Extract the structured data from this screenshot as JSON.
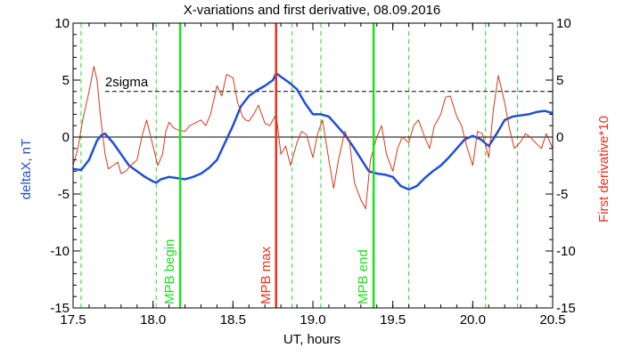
{
  "chart_data": {
    "type": "line",
    "title": "X-variations and first derivative, 08.09.2016",
    "xlabel": "UT, hours",
    "ylabel_left": "deltaX, nT",
    "ylabel_right": "First derivative*10",
    "xlim": [
      17.5,
      20.5
    ],
    "ylim": [
      -15,
      10
    ],
    "xticks": [
      "17.5",
      "18.0",
      "18.5",
      "19.0",
      "19.5",
      "20.0",
      "20.5"
    ],
    "xtick_values": [
      17.5,
      18.0,
      18.5,
      19.0,
      19.5,
      20.0,
      20.5
    ],
    "yticks_left": [
      "10",
      "5",
      "0",
      "-5",
      "-10",
      "-15"
    ],
    "yticks_right": [
      "10",
      "5",
      "0",
      "-5",
      "-10",
      "-15"
    ],
    "ytick_values": [
      10,
      5,
      0,
      -5,
      -10,
      -15
    ],
    "colors": {
      "deltaX": "#1f4fd6",
      "derivative": "#d43a1a",
      "mpb_bounds": "#1ee01e",
      "mpb_max": "#e8321e",
      "axes": "#000000"
    },
    "sigma": {
      "label": "2sigma",
      "value": 4
    },
    "vertical_markers": [
      {
        "label": "MPB begin",
        "x": 18.17,
        "color": "#1ee01e"
      },
      {
        "label": "MPB max",
        "x": 18.77,
        "color": "#e8321e"
      },
      {
        "label": "MPB end",
        "x": 19.38,
        "color": "#1ee01e"
      }
    ],
    "dashed_verticals": [
      17.55,
      18.02,
      18.87,
      19.05,
      19.6,
      20.08,
      20.28
    ],
    "series": [
      {
        "name": "deltaX",
        "axis": "left",
        "x": [
          17.5,
          17.55,
          17.6,
          17.65,
          17.68,
          17.7,
          17.75,
          17.8,
          17.85,
          17.9,
          17.95,
          18.0,
          18.02,
          18.05,
          18.1,
          18.15,
          18.2,
          18.25,
          18.3,
          18.35,
          18.4,
          18.45,
          18.5,
          18.55,
          18.6,
          18.65,
          18.7,
          18.75,
          18.77,
          18.8,
          18.85,
          18.9,
          18.95,
          19.0,
          19.05,
          19.1,
          19.15,
          19.2,
          19.25,
          19.3,
          19.35,
          19.4,
          19.45,
          19.5,
          19.55,
          19.6,
          19.65,
          19.7,
          19.75,
          19.8,
          19.85,
          19.9,
          19.95,
          20.0,
          20.05,
          20.1,
          20.15,
          20.2,
          20.25,
          20.3,
          20.35,
          20.4,
          20.45,
          20.5
        ],
        "y": [
          -2.8,
          -2.9,
          -2.0,
          -0.3,
          0.2,
          0.3,
          -0.5,
          -1.5,
          -2.5,
          -3.0,
          -3.5,
          -3.9,
          -4.0,
          -3.7,
          -3.5,
          -3.6,
          -3.7,
          -3.5,
          -3.2,
          -2.7,
          -2.0,
          -0.5,
          1.0,
          2.7,
          3.6,
          4.1,
          4.5,
          5.0,
          5.6,
          5.3,
          4.8,
          4.2,
          3.0,
          2.0,
          2.0,
          1.8,
          1.0,
          0.2,
          -0.8,
          -1.9,
          -3.0,
          -3.2,
          -3.3,
          -3.5,
          -4.3,
          -4.6,
          -4.3,
          -3.6,
          -3.0,
          -2.5,
          -1.8,
          -1.0,
          -0.2,
          0.1,
          -0.2,
          -0.8,
          0.3,
          1.5,
          1.8,
          1.9,
          2.0,
          2.2,
          2.3,
          2.1
        ]
      },
      {
        "name": "First derivative*10",
        "axis": "right",
        "x": [
          17.5,
          17.53,
          17.56,
          17.6,
          17.63,
          17.65,
          17.67,
          17.7,
          17.72,
          17.75,
          17.78,
          17.8,
          17.83,
          17.86,
          17.9,
          17.93,
          17.96,
          18.0,
          18.03,
          18.06,
          18.08,
          18.1,
          18.13,
          18.16,
          18.2,
          18.23,
          18.26,
          18.3,
          18.33,
          18.36,
          18.4,
          18.43,
          18.46,
          18.5,
          18.53,
          18.56,
          18.58,
          18.6,
          18.63,
          18.66,
          18.7,
          18.73,
          18.77,
          18.8,
          18.83,
          18.86,
          18.9,
          18.93,
          18.96,
          19.0,
          19.03,
          19.06,
          19.1,
          19.13,
          19.16,
          19.2,
          19.23,
          19.26,
          19.3,
          19.33,
          19.36,
          19.4,
          19.43,
          19.46,
          19.5,
          19.53,
          19.56,
          19.6,
          19.63,
          19.66,
          19.7,
          19.73,
          19.76,
          19.8,
          19.83,
          19.86,
          19.9,
          19.93,
          19.96,
          20.0,
          20.03,
          20.06,
          20.1,
          20.13,
          20.16,
          20.2,
          20.23,
          20.26,
          20.3,
          20.33,
          20.36,
          20.4,
          20.43,
          20.46,
          20.5
        ],
        "y": [
          -2.5,
          -1.0,
          1.5,
          4.0,
          6.2,
          5.0,
          2.0,
          -1.5,
          -2.8,
          -2.5,
          -2.2,
          -3.2,
          -3.0,
          -2.5,
          -2.0,
          0.0,
          1.5,
          -0.8,
          -2.5,
          -1.5,
          0.5,
          1.3,
          0.8,
          0.6,
          0.5,
          1.0,
          1.2,
          1.5,
          1.0,
          2.0,
          4.5,
          3.6,
          5.5,
          5.2,
          3.0,
          1.8,
          1.5,
          1.4,
          2.0,
          2.8,
          1.2,
          1.0,
          2.0,
          -1.5,
          -0.8,
          -2.5,
          -0.5,
          0.5,
          0.2,
          -1.8,
          0.3,
          1.5,
          -2.0,
          -4.5,
          -2.0,
          0.5,
          -0.5,
          -4.0,
          -5.5,
          -6.3,
          -2.0,
          0.0,
          1.0,
          -1.5,
          -3.0,
          -1.0,
          0.0,
          -0.5,
          1.0,
          1.5,
          0.0,
          -1.0,
          1.0,
          2.0,
          3.5,
          3.6,
          1.8,
          1.0,
          -0.7,
          -2.5,
          0.5,
          0.3,
          -1.8,
          2.5,
          5.4,
          3.0,
          0.7,
          -1.0,
          -0.4,
          0.3,
          0.0,
          -0.6,
          -1.0,
          0.3,
          -1.0
        ]
      }
    ]
  }
}
